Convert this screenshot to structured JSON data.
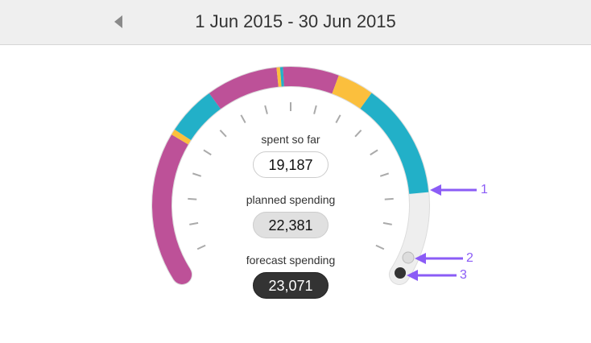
{
  "header": {
    "title": "1 Jun 2015 - 30 Jun 2015",
    "prev_icon": "chevron-left-icon"
  },
  "gauge": {
    "segments": [
      {
        "color": "#bd5198",
        "from": 0,
        "to": 0.258
      },
      {
        "color": "#fbbf3d",
        "from": 0.258,
        "to": 0.268
      },
      {
        "color": "#22b0c8",
        "from": 0.268,
        "to": 0.353
      },
      {
        "color": "#bd5198",
        "from": 0.353,
        "to": 0.476
      },
      {
        "color": "#fbbf3d",
        "from": 0.476,
        "to": 0.482
      },
      {
        "color": "#22b0c8",
        "from": 0.482,
        "to": 0.487
      },
      {
        "color": "#bd5198",
        "from": 0.487,
        "to": 0.583
      },
      {
        "color": "#fbbf3d",
        "from": 0.583,
        "to": 0.646
      },
      {
        "color": "#22b0c8",
        "from": 0.646,
        "to": 0.845
      }
    ],
    "track_color": "#eeeeee",
    "spent_label": "spent so far",
    "spent_value": "19,187",
    "planned_label": "planned spending",
    "planned_value": "22,381",
    "forecast_label": "forecast spending",
    "forecast_value": "23,071"
  },
  "annotations": [
    "1",
    "2",
    "3"
  ],
  "annotation_color": "#8b5cf6"
}
